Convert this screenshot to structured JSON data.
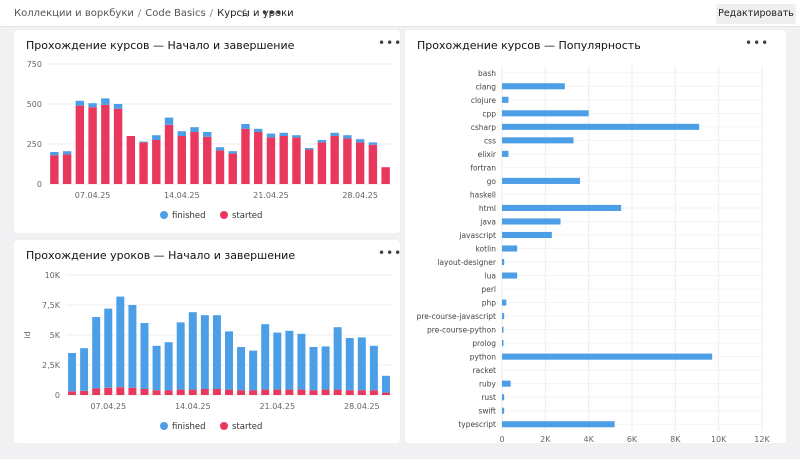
{
  "breadcrumb": [
    "Коллекции и воркбуки",
    "Code Basics",
    "Курсы и уроки"
  ],
  "header": {
    "edit_label": "Редактировать",
    "star_icon": "star-icon",
    "more_icon": "more-icon"
  },
  "colors": {
    "finished": "#4c9ee6",
    "started": "#e8385d",
    "grid": "#ececec",
    "axis_text": "#666"
  },
  "panels": {
    "courses_time": {
      "title": "Прохождение курсов — Начало и завершение"
    },
    "lessons_time": {
      "title": "Прохождение уроков — Начало и завершение"
    },
    "popularity": {
      "title": "Прохождение курсов — Популярность"
    }
  },
  "chart_data": [
    {
      "id": "courses_time",
      "type": "bar",
      "stacked": true,
      "title": "Прохождение курсов — Начало и завершение",
      "x_tick_labels": [
        "07.04.25",
        "14.04.25",
        "21.04.25",
        "28.04.25"
      ],
      "x_tick_positions": [
        3.5,
        10.5,
        17.5,
        24.5
      ],
      "y_ticks": [
        "750",
        "500",
        "250",
        "0"
      ],
      "ylim": [
        0,
        750
      ],
      "legend": [
        "finished",
        "started"
      ],
      "legend_position": "bottom",
      "series": [
        {
          "name": "started",
          "values": [
            180,
            185,
            490,
            480,
            495,
            470,
            300,
            260,
            275,
            370,
            300,
            325,
            295,
            210,
            190,
            345,
            325,
            290,
            300,
            290,
            215,
            260,
            300,
            285,
            260,
            245,
            105
          ]
        },
        {
          "name": "finished",
          "values": [
            20,
            20,
            30,
            25,
            40,
            30,
            0,
            5,
            30,
            45,
            30,
            30,
            30,
            20,
            15,
            30,
            20,
            25,
            20,
            15,
            10,
            15,
            20,
            20,
            20,
            15,
            0
          ]
        }
      ]
    },
    {
      "id": "lessons_time",
      "type": "bar",
      "stacked": true,
      "title": "Прохождение уроков — Начало и завершение",
      "ylabel": "id",
      "x_tick_labels": [
        "07.04.25",
        "14.04.25",
        "21.04.25",
        "28.04.25"
      ],
      "x_tick_positions": [
        3.5,
        10.5,
        17.5,
        24.5
      ],
      "y_ticks": [
        "10K",
        "7,5K",
        "5K",
        "2,5K",
        "0"
      ],
      "ylim": [
        0,
        10000
      ],
      "legend": [
        "finished",
        "started"
      ],
      "legend_position": "bottom",
      "series": [
        {
          "name": "started",
          "values": [
            300,
            350,
            550,
            600,
            650,
            600,
            500,
            400,
            400,
            450,
            450,
            500,
            500,
            450,
            400,
            400,
            450,
            450,
            450,
            450,
            400,
            450,
            450,
            400,
            400,
            400,
            200
          ]
        },
        {
          "name": "finished",
          "values": [
            3200,
            3550,
            5950,
            6600,
            7550,
            6900,
            5500,
            3700,
            4000,
            5600,
            6450,
            6150,
            6150,
            4850,
            3600,
            3300,
            5450,
            4750,
            4900,
            4650,
            3600,
            3600,
            5200,
            4350,
            4400,
            3700,
            1400
          ]
        }
      ]
    },
    {
      "id": "popularity",
      "type": "bar",
      "orientation": "horizontal",
      "title": "Прохождение курсов — Популярность",
      "categories": [
        "bash",
        "clang",
        "clojure",
        "cpp",
        "csharp",
        "css",
        "elixir",
        "fortran",
        "go",
        "haskell",
        "html",
        "java",
        "javascript",
        "kotlin",
        "layout-designer",
        "lua",
        "perl",
        "php",
        "pre-course-javascript",
        "pre-course-python",
        "prolog",
        "python",
        "racket",
        "ruby",
        "rust",
        "swift",
        "typescript"
      ],
      "values": [
        0,
        2900,
        300,
        4000,
        9100,
        3300,
        300,
        0,
        3600,
        0,
        5500,
        2700,
        2300,
        700,
        100,
        700,
        0,
        200,
        100,
        50,
        50,
        9700,
        0,
        400,
        100,
        100,
        5200
      ],
      "x_ticks": [
        "0",
        "2K",
        "4K",
        "6K",
        "8K",
        "10K",
        "12K"
      ],
      "xlim": [
        0,
        12000
      ]
    }
  ]
}
